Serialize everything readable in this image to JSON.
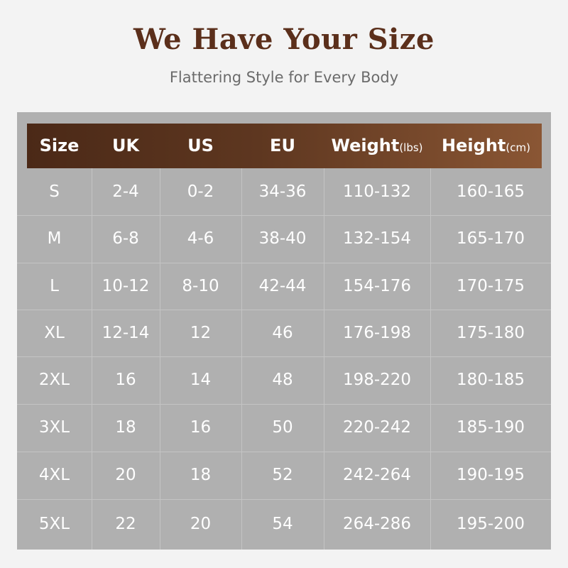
{
  "title": "We Have Your Size",
  "subtitle": "Flattering Style for Every Body",
  "colors": {
    "title": "#5b2f1b",
    "header_start": "#4b2917",
    "header_end": "#8a5634",
    "table_bg": "#b0b0b0"
  },
  "table": {
    "headers": [
      {
        "label": "Size",
        "unit": ""
      },
      {
        "label": "UK",
        "unit": ""
      },
      {
        "label": "US",
        "unit": ""
      },
      {
        "label": "EU",
        "unit": ""
      },
      {
        "label": "Weight",
        "unit": "(lbs)"
      },
      {
        "label": "Height",
        "unit": "(cm)"
      }
    ],
    "rows": [
      [
        "S",
        "2-4",
        "0-2",
        "34-36",
        "110-132",
        "160-165"
      ],
      [
        "M",
        "6-8",
        "4-6",
        "38-40",
        "132-154",
        "165-170"
      ],
      [
        "L",
        "10-12",
        "8-10",
        "42-44",
        "154-176",
        "170-175"
      ],
      [
        "XL",
        "12-14",
        "12",
        "46",
        "176-198",
        "175-180"
      ],
      [
        "2XL",
        "16",
        "14",
        "48",
        "198-220",
        "180-185"
      ],
      [
        "3XL",
        "18",
        "16",
        "50",
        "220-242",
        "185-190"
      ],
      [
        "4XL",
        "20",
        "18",
        "52",
        "242-264",
        "190-195"
      ],
      [
        "5XL",
        "22",
        "20",
        "54",
        "264-286",
        "195-200"
      ]
    ]
  }
}
